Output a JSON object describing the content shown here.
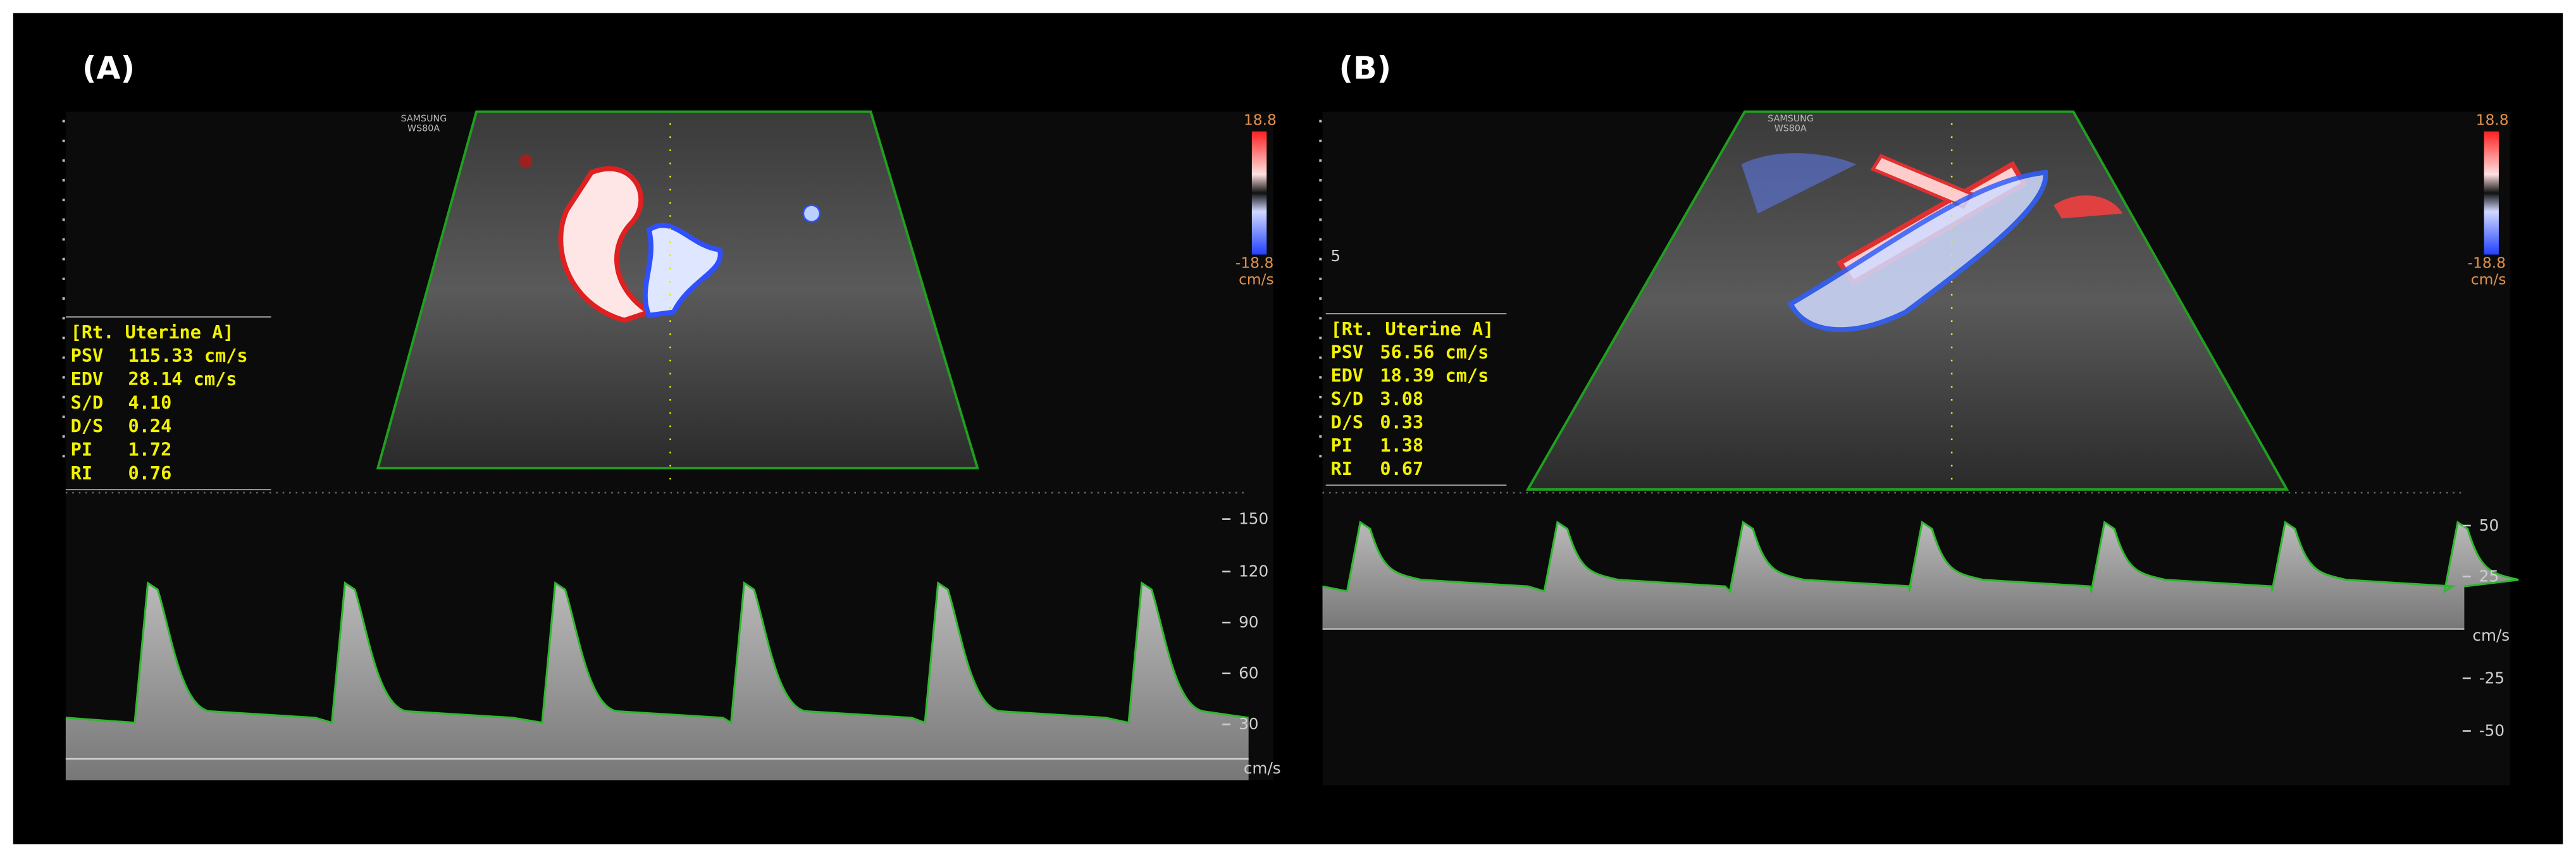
{
  "panels": [
    {
      "label": "(A)",
      "brand": "SAMSUNG",
      "model": "WS80A",
      "scale_max": "18.8",
      "scale_min": "-18.8",
      "scale_unit": "cm/s",
      "vessel": "[Rt. Uterine A]",
      "measurements": [
        {
          "name": "PSV",
          "value": "115.33 cm/s"
        },
        {
          "name": "EDV",
          "value": "28.14 cm/s"
        },
        {
          "name": "S/D",
          "value": "4.10"
        },
        {
          "name": "D/S",
          "value": "0.24"
        },
        {
          "name": "PI",
          "value": "1.72"
        },
        {
          "name": "RI",
          "value": "0.76"
        }
      ],
      "velocity_ticks": [
        "150",
        "120",
        "90",
        "60",
        "30"
      ],
      "velocity_unit": "cm/s"
    },
    {
      "label": "(B)",
      "brand": "SAMSUNG",
      "model": "WS80A",
      "scale_max": "18.8",
      "scale_min": "-18.8",
      "scale_unit": "cm/s",
      "vessel": "[Rt. Uterine A]",
      "depth_label": "5",
      "measurements": [
        {
          "name": "PSV",
          "value": "56.56 cm/s"
        },
        {
          "name": "EDV",
          "value": "18.39 cm/s"
        },
        {
          "name": "S/D",
          "value": "3.08"
        },
        {
          "name": "D/S",
          "value": "0.33"
        },
        {
          "name": "PI",
          "value": "1.38"
        },
        {
          "name": "RI",
          "value": "0.67"
        }
      ],
      "velocity_ticks": [
        "50",
        "25",
        "-25",
        "-50"
      ],
      "velocity_unit": "cm/s"
    }
  ]
}
